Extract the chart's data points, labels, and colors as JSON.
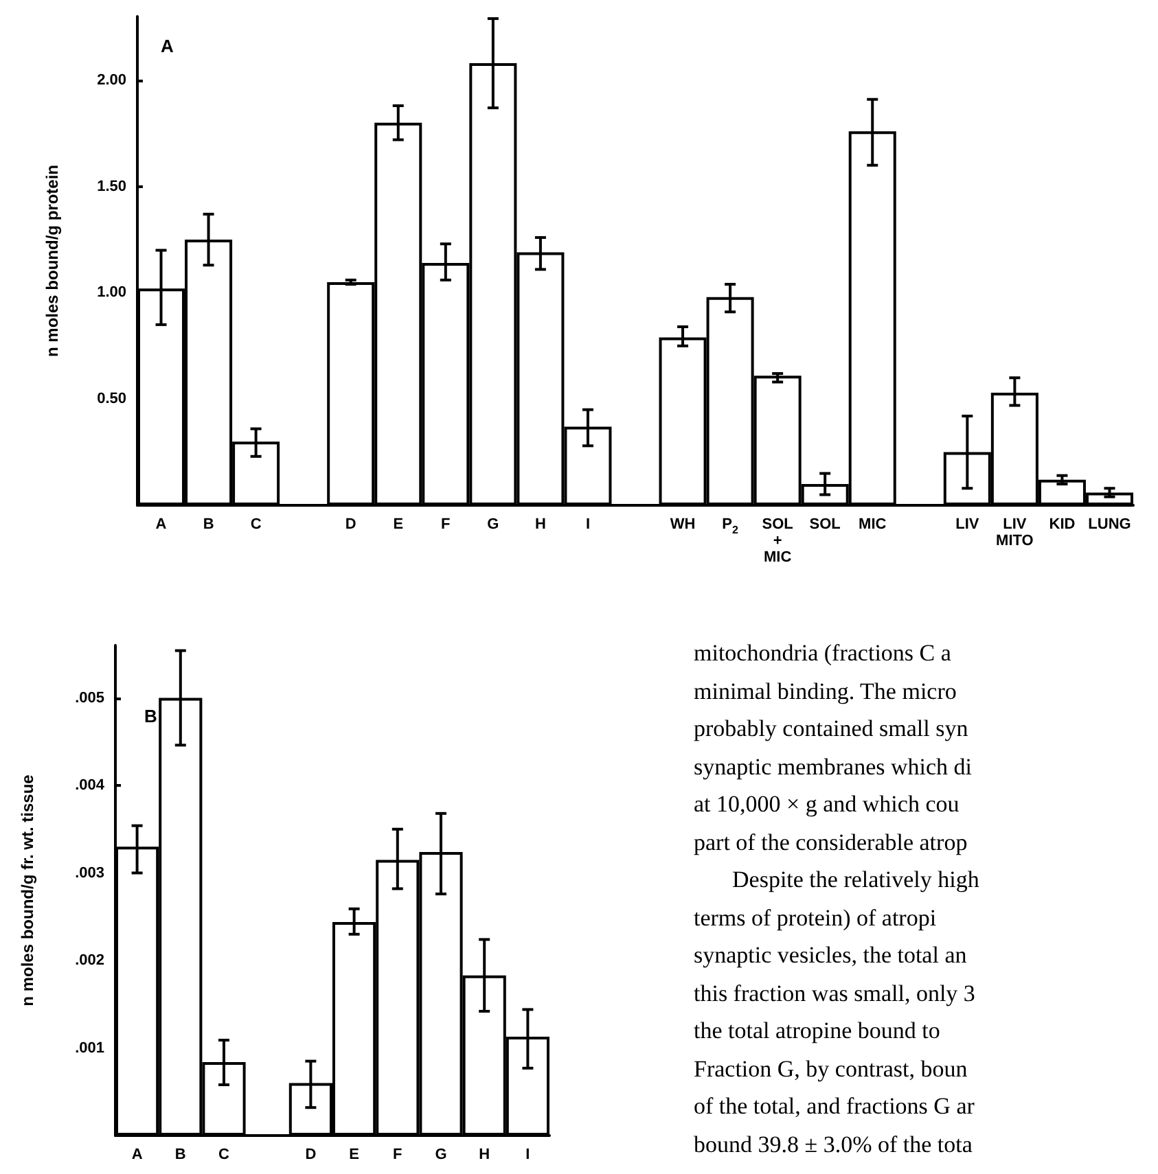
{
  "chart_data": [
    {
      "type": "bar",
      "title": "A",
      "ylabel": "n moles bound/g protein",
      "categories": [
        "A",
        "B",
        "C",
        null,
        "D",
        "E",
        "F",
        "G",
        "H",
        "I",
        null,
        "WH",
        "P$_{2}$",
        "SOL\n+\nMIC",
        "SOL",
        "MIC",
        null,
        "LIV",
        "LIV\nMITO",
        "KID",
        "LUNG"
      ],
      "series": [
        {
          "color": "#ffffff",
          "values": [
            1.02,
            1.25,
            0.3,
            null,
            1.05,
            1.8,
            1.14,
            2.08,
            1.19,
            0.37,
            null,
            0.79,
            0.98,
            0.61,
            0.1,
            1.76,
            null,
            0.25,
            0.53,
            0.12,
            0.06
          ],
          "errors": [
            [
              0.85,
              1.2
            ],
            [
              1.13,
              1.37
            ],
            [
              0.23,
              0.36
            ],
            null,
            [
              1.04,
              1.06
            ],
            [
              1.72,
              1.88
            ],
            [
              1.06,
              1.23
            ],
            [
              1.87,
              2.29
            ],
            [
              1.11,
              1.26
            ],
            [
              0.28,
              0.45
            ],
            null,
            [
              0.75,
              0.84
            ],
            [
              0.91,
              1.04
            ],
            [
              0.58,
              0.62
            ],
            [
              0.05,
              0.15
            ],
            [
              1.6,
              1.91
            ],
            null,
            [
              0.08,
              0.42
            ],
            [
              0.47,
              0.6
            ],
            [
              0.1,
              0.14
            ],
            [
              0.04,
              0.08
            ]
          ]
        }
      ],
      "ylim": [
        0,
        2.3
      ],
      "yticks": [
        {
          "value": 0.5,
          "label": "0.50"
        },
        {
          "value": 1,
          "label": "1.00"
        },
        {
          "value": 1.5,
          "label": "1.50"
        },
        {
          "value": 2,
          "label": "2.00"
        }
      ]
    },
    {
      "type": "bar",
      "title": "B",
      "ylabel": "n moles bound/g fr. wt. tissue",
      "categories": [
        "A",
        "B",
        "C",
        null,
        "D",
        "E",
        "F",
        "G",
        "H",
        "I"
      ],
      "series": [
        {
          "color": "#ffffff",
          "values": [
            0.0033,
            0.005,
            0.00084,
            null,
            0.0006,
            0.00244,
            0.00315,
            0.00324,
            0.00183,
            0.00113
          ],
          "errors": [
            [
              0.003,
              0.00354
            ],
            [
              0.00446,
              0.00554
            ],
            [
              0.00058,
              0.00109
            ],
            null,
            [
              0.00032,
              0.00085
            ],
            [
              0.0023,
              0.00259
            ],
            [
              0.00282,
              0.0035
            ],
            [
              0.00276,
              0.00368
            ],
            [
              0.00142,
              0.00224
            ],
            [
              0.00077,
              0.00144
            ]
          ]
        }
      ],
      "ylim": [
        0,
        0.0056
      ],
      "yticks": [
        {
          "value": 0.001,
          "label": ".001"
        },
        {
          "value": 0.002,
          "label": ".002"
        },
        {
          "value": 0.003,
          "label": ".003"
        },
        {
          "value": 0.004,
          "label": ".004"
        },
        {
          "value": 0.005,
          "label": ".005"
        }
      ]
    },
    {
      "type": "other",
      "annotations": [
        "mitochondria (fractions C a",
        "minimal binding. The micro",
        "probably contained small syn",
        "synaptic membranes which di",
        "at 10,000 × g and which cou",
        "part of the considerable atrop",
        "Despite the relatively high",
        "terms of protein) of atropi",
        "synaptic vesicles, the total an",
        "this fraction was small, only 3",
        "the total atropine bound to",
        "Fraction G, by contrast, boun",
        "of the total, and fractions G ar",
        "bound 39.8 ± 3.0% of the tota"
      ]
    }
  ]
}
